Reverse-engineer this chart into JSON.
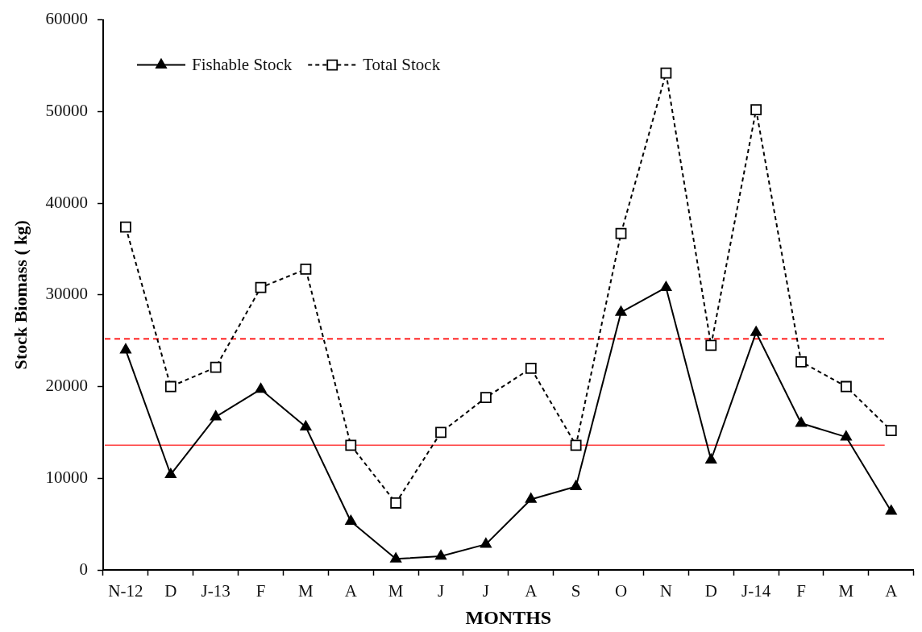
{
  "chart_data": {
    "type": "line",
    "ylabel": "Stock Biomass ( kg)",
    "xlabel": "MONTHS",
    "categories": [
      "N-12",
      "D",
      "J-13",
      "F",
      "M",
      "A",
      "M",
      "J",
      "J",
      "A",
      "S",
      "O",
      "N",
      "D",
      "J-14",
      "F",
      "M",
      "A"
    ],
    "series": [
      {
        "name": "Fishable Stock",
        "color": "#000000",
        "marker": "triangle",
        "line_style": "solid",
        "values": [
          24000,
          10400,
          16700,
          19700,
          15600,
          5300,
          1200,
          1500,
          2800,
          7700,
          9100,
          28100,
          30800,
          12000,
          25900,
          16000,
          14500,
          6400
        ]
      },
      {
        "name": "Total Stock",
        "color": "#000000",
        "marker": "square",
        "line_style": "dashed",
        "values": [
          37400,
          20000,
          22100,
          30800,
          32800,
          13600,
          7300,
          15000,
          18800,
          22000,
          13600,
          36700,
          54200,
          24500,
          50200,
          22700,
          20000,
          15200
        ]
      }
    ],
    "ylim": [
      0,
      60000
    ],
    "yticks": [
      0,
      10000,
      20000,
      30000,
      40000,
      50000,
      60000
    ],
    "ref_lines": [
      {
        "axis": "y",
        "value": 25200,
        "color": "#ff0000",
        "line_style": "dashed"
      },
      {
        "axis": "y",
        "value": 13600,
        "color": "#ff4040",
        "line_style": "solid"
      }
    ],
    "legend": "top left",
    "grid": false
  }
}
